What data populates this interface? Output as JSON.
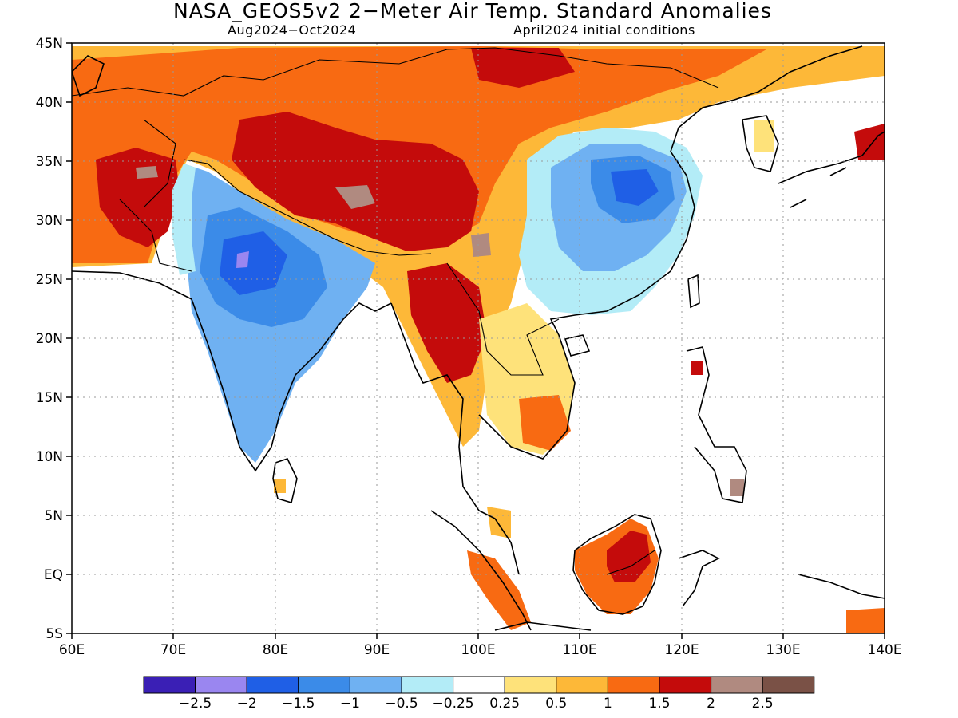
{
  "title": "NASA_GEOS5v2 2−Meter Air Temp. Standard Anomalies",
  "period": "Aug2024−Oct2024",
  "init": "April2024 initial conditions",
  "lat_labels": [
    "45N",
    "40N",
    "35N",
    "30N",
    "25N",
    "20N",
    "15N",
    "10N",
    "5N",
    "EQ",
    "5S"
  ],
  "lon_labels": [
    "60E",
    "70E",
    "80E",
    "90E",
    "100E",
    "110E",
    "120E",
    "130E",
    "140E"
  ],
  "colorbar": {
    "colors": [
      "#3a1fb5",
      "#9a86f0",
      "#1f5fe6",
      "#3b8be8",
      "#6fb1f2",
      "#b3ecf7",
      "#ffffff",
      "#fee27a",
      "#fdb838",
      "#f86a12",
      "#c40b0b",
      "#b08a80",
      "#7a5146"
    ],
    "labels": [
      "−2.5",
      "−2",
      "−1.5",
      "−1",
      "−0.5",
      "−0.25",
      "0.25",
      "0.5",
      "1",
      "1.5",
      "2",
      "2.5"
    ]
  }
}
